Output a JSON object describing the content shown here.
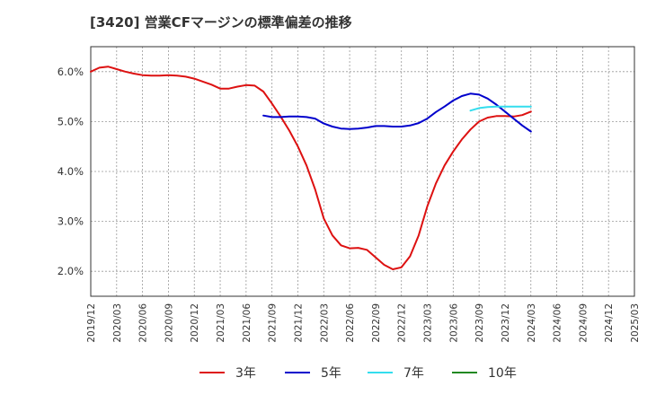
{
  "title": "[3420]  営業CFマージンの標準偏差の推移",
  "chart_data": {
    "type": "line",
    "title": "[3420]  営業CFマージンの標準偏差の推移",
    "xlabel": "",
    "ylabel": "",
    "x_ticks": [
      "2019/12",
      "2020/03",
      "2020/06",
      "2020/09",
      "2020/12",
      "2021/03",
      "2021/06",
      "2021/09",
      "2021/12",
      "2022/03",
      "2022/06",
      "2022/09",
      "2022/12",
      "2023/03",
      "2023/06",
      "2023/09",
      "2023/12",
      "2024/03",
      "2024/06",
      "2024/09",
      "2024/12",
      "2025/03"
    ],
    "y_ticks": [
      "2.0%",
      "3.0%",
      "4.0%",
      "5.0%",
      "6.0%"
    ],
    "ylim": [
      1.5,
      6.5
    ],
    "grid": true,
    "legend_position": "bottom",
    "series": [
      {
        "name": "3年",
        "color": "#dd1111",
        "points": [
          [
            "2019/12",
            6.0
          ],
          [
            "2020/01",
            6.08
          ],
          [
            "2020/02",
            6.1
          ],
          [
            "2020/03",
            6.05
          ],
          [
            "2020/04",
            6.0
          ],
          [
            "2020/05",
            5.96
          ],
          [
            "2020/06",
            5.93
          ],
          [
            "2020/07",
            5.92
          ],
          [
            "2020/08",
            5.92
          ],
          [
            "2020/09",
            5.93
          ],
          [
            "2020/10",
            5.92
          ],
          [
            "2020/11",
            5.9
          ],
          [
            "2020/12",
            5.86
          ],
          [
            "2021/01",
            5.8
          ],
          [
            "2021/02",
            5.74
          ],
          [
            "2021/03",
            5.66
          ],
          [
            "2021/04",
            5.66
          ],
          [
            "2021/05",
            5.7
          ],
          [
            "2021/06",
            5.73
          ],
          [
            "2021/07",
            5.72
          ],
          [
            "2021/08",
            5.6
          ],
          [
            "2021/09",
            5.36
          ],
          [
            "2021/10",
            5.1
          ],
          [
            "2021/11",
            4.82
          ],
          [
            "2021/12",
            4.5
          ],
          [
            "2022/01",
            4.12
          ],
          [
            "2022/02",
            3.64
          ],
          [
            "2022/03",
            3.06
          ],
          [
            "2022/04",
            2.72
          ],
          [
            "2022/05",
            2.52
          ],
          [
            "2022/06",
            2.46
          ],
          [
            "2022/07",
            2.47
          ],
          [
            "2022/08",
            2.43
          ],
          [
            "2022/09",
            2.28
          ],
          [
            "2022/10",
            2.13
          ],
          [
            "2022/11",
            2.04
          ],
          [
            "2022/12",
            2.08
          ],
          [
            "2023/01",
            2.3
          ],
          [
            "2023/02",
            2.72
          ],
          [
            "2023/03",
            3.3
          ],
          [
            "2023/04",
            3.76
          ],
          [
            "2023/05",
            4.12
          ],
          [
            "2023/06",
            4.4
          ],
          [
            "2023/07",
            4.64
          ],
          [
            "2023/08",
            4.84
          ],
          [
            "2023/09",
            5.0
          ],
          [
            "2023/10",
            5.08
          ],
          [
            "2023/11",
            5.11
          ],
          [
            "2023/12",
            5.11
          ],
          [
            "2024/01",
            5.1
          ],
          [
            "2024/02",
            5.13
          ],
          [
            "2024/03",
            5.2
          ]
        ]
      },
      {
        "name": "5年",
        "color": "#0000cc",
        "points": [
          [
            "2021/08",
            5.12
          ],
          [
            "2021/09",
            5.09
          ],
          [
            "2021/10",
            5.09
          ],
          [
            "2021/11",
            5.1
          ],
          [
            "2021/12",
            5.1
          ],
          [
            "2022/01",
            5.09
          ],
          [
            "2022/02",
            5.06
          ],
          [
            "2022/03",
            4.96
          ],
          [
            "2022/04",
            4.9
          ],
          [
            "2022/05",
            4.86
          ],
          [
            "2022/06",
            4.85
          ],
          [
            "2022/07",
            4.86
          ],
          [
            "2022/08",
            4.88
          ],
          [
            "2022/09",
            4.91
          ],
          [
            "2022/10",
            4.91
          ],
          [
            "2022/11",
            4.9
          ],
          [
            "2022/12",
            4.9
          ],
          [
            "2023/01",
            4.92
          ],
          [
            "2023/02",
            4.97
          ],
          [
            "2023/03",
            5.06
          ],
          [
            "2023/04",
            5.19
          ],
          [
            "2023/05",
            5.3
          ],
          [
            "2023/06",
            5.42
          ],
          [
            "2023/07",
            5.51
          ],
          [
            "2023/08",
            5.56
          ],
          [
            "2023/09",
            5.54
          ],
          [
            "2023/10",
            5.46
          ],
          [
            "2023/11",
            5.34
          ],
          [
            "2023/12",
            5.2
          ],
          [
            "2024/01",
            5.06
          ],
          [
            "2024/02",
            4.92
          ],
          [
            "2024/03",
            4.8
          ]
        ]
      },
      {
        "name": "7年",
        "color": "#33ddee",
        "points": [
          [
            "2023/08",
            5.22
          ],
          [
            "2023/09",
            5.27
          ],
          [
            "2023/10",
            5.29
          ],
          [
            "2023/11",
            5.3
          ],
          [
            "2023/12",
            5.3
          ],
          [
            "2024/01",
            5.3
          ],
          [
            "2024/02",
            5.3
          ],
          [
            "2024/03",
            5.3
          ]
        ]
      },
      {
        "name": "10年",
        "color": "#228822",
        "points": []
      }
    ]
  }
}
